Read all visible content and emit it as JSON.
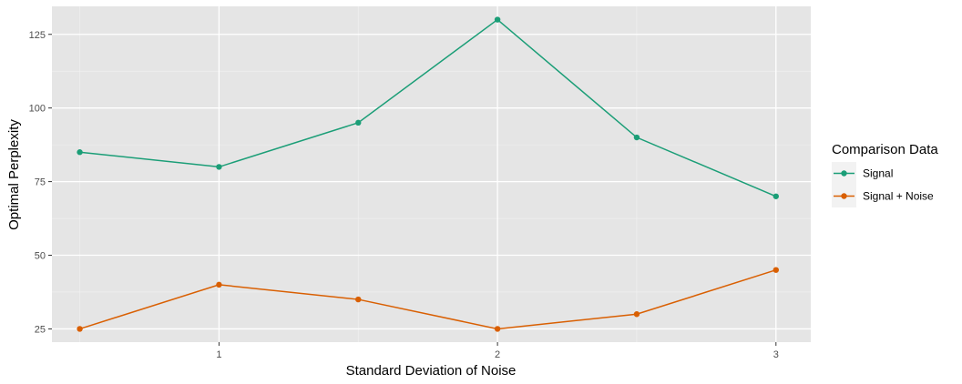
{
  "chart_data": {
    "type": "line",
    "xlabel": "Standard Deviation of Noise",
    "ylabel": "Optimal Perplexity",
    "x": [
      0.5,
      1,
      1.5,
      2,
      2.5,
      3
    ],
    "x_ticks": [
      1,
      2,
      3
    ],
    "y_ticks": [
      25,
      50,
      75,
      100,
      125
    ],
    "xlim": [
      0.4,
      3.125
    ],
    "ylim": [
      20.5,
      134.5
    ],
    "grid": true,
    "legend": {
      "title": "Comparison Data",
      "placement": "right"
    },
    "series": [
      {
        "name": "Signal",
        "color": "#1b9e77",
        "values": [
          85,
          80,
          95,
          130,
          90,
          70
        ]
      },
      {
        "name": "Signal + Noise",
        "color": "#d95f02",
        "values": [
          25,
          40,
          35,
          25,
          30,
          45
        ]
      }
    ]
  }
}
